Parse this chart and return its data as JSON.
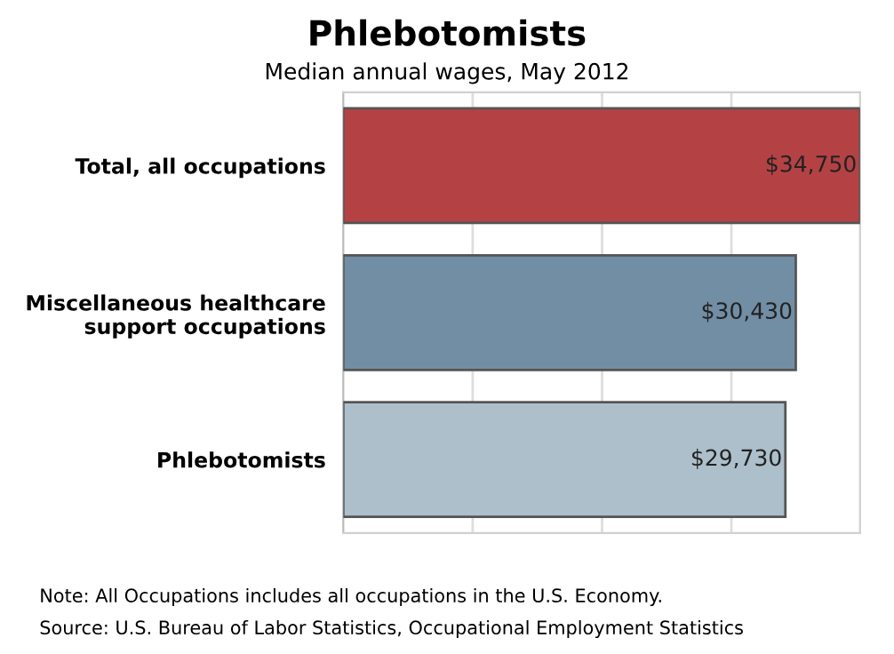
{
  "chart_data": {
    "type": "bar",
    "orientation": "horizontal",
    "title": "Phlebotomists",
    "subtitle": "Median annual wages, May 2012",
    "categories": [
      "Total, all occupations",
      "Miscellaneous healthcare\nsupport occupations",
      "Phlebotomists"
    ],
    "values": [
      34750,
      30430,
      29730
    ],
    "colors": [
      "#b44244",
      "#718ea5",
      "#adbfcb"
    ],
    "value_labels": [
      "$34,750",
      "$30,430",
      "$29,730"
    ],
    "xlim": [
      0,
      34750
    ],
    "xticks": [
      {
        "value": 8700,
        "label": null
      },
      {
        "value": 17400,
        "label": null
      },
      {
        "value": 26100,
        "label": null
      }
    ],
    "grid": "x",
    "annotations": [
      "Note: All Occupations includes all occupations in the U.S. Economy.",
      "Source: U.S. Bureau of Labor Statistics, Occupational Employment Statistics"
    ]
  }
}
